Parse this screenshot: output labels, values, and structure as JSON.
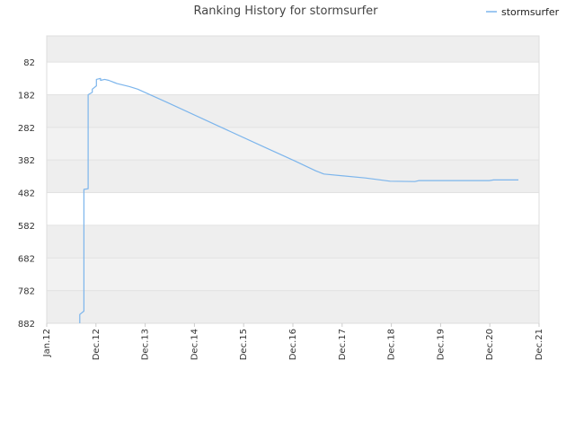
{
  "chart_data": {
    "type": "line",
    "title": "Ranking History for stormsurfer",
    "xlabel": "",
    "ylabel": "",
    "legend_position": "top-right",
    "grid": true,
    "y_inverted": true,
    "ylim": [
      882,
      2
    ],
    "xlim": [
      "2012-01",
      "2021-12"
    ],
    "y_ticks": [
      "82",
      "182",
      "282",
      "382",
      "482",
      "582",
      "682",
      "782",
      "882"
    ],
    "x_ticks": [
      "Jan.12",
      "Dec.12",
      "Dec.13",
      "Dec.14",
      "Dec.15",
      "Dec.16",
      "Dec.17",
      "Dec.18",
      "Dec.19",
      "Dec.20",
      "Dec.21"
    ],
    "series": [
      {
        "name": "stormsurfer",
        "color": "#7cb5ec",
        "points": [
          [
            "2012-09",
            882
          ],
          [
            "2012-09",
            855
          ],
          [
            "2012-10",
            845
          ],
          [
            "2012-10",
            770
          ],
          [
            "2012-10",
            750
          ],
          [
            "2012-10",
            482
          ],
          [
            "2012-10",
            472
          ],
          [
            "2012-11",
            470
          ],
          [
            "2012-11",
            410
          ],
          [
            "2012-11",
            302
          ],
          [
            "2012-11",
            200
          ],
          [
            "2012-11",
            182
          ],
          [
            "2012-12",
            175
          ],
          [
            "2012-12",
            165
          ],
          [
            "2013-01",
            155
          ],
          [
            "2013-01",
            140
          ],
          [
            "2013-01",
            135
          ],
          [
            "2013-02",
            132
          ],
          [
            "2013-02",
            138
          ],
          [
            "2013-03",
            135
          ],
          [
            "2013-04",
            138
          ],
          [
            "2013-06",
            148
          ],
          [
            "2013-09",
            157
          ],
          [
            "2013-11",
            165
          ],
          [
            "2014-06",
            205
          ],
          [
            "2015-06",
            275
          ],
          [
            "2016-06",
            345
          ],
          [
            "2017-01",
            385
          ],
          [
            "2017-06",
            415
          ],
          [
            "2017-08",
            425
          ],
          [
            "2018-06",
            437
          ],
          [
            "2018-12",
            447
          ],
          [
            "2019-06",
            448
          ],
          [
            "2019-07",
            445
          ],
          [
            "2020-12",
            445
          ],
          [
            "2021-01",
            443
          ],
          [
            "2021-07",
            443
          ]
        ]
      }
    ]
  }
}
